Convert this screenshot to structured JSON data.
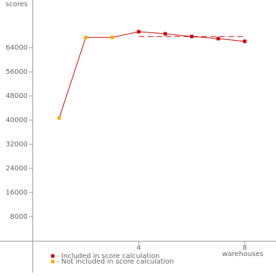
{
  "chart_data": {
    "type": "line",
    "y_label": "scores",
    "x_label": "warehouses",
    "x": [
      1,
      2,
      3,
      4,
      5,
      6,
      7,
      8
    ],
    "values": [
      40700,
      67400,
      67400,
      69300,
      68600,
      67700,
      67000,
      66100
    ],
    "line_color": "#cc0000",
    "marker_colors": [
      "#ffaa00",
      "#ffaa00",
      "#ffaa00",
      "#cc0000",
      "#cc0000",
      "#cc0000",
      "#cc0000",
      "#cc0000"
    ],
    "score": 67700,
    "score_range": [
      4,
      8
    ],
    "legend": [
      {
        "label": "- Included in score calculation",
        "color": "#cc0000"
      },
      {
        "label": "- Not included in score calculation",
        "color": "#ffaa00"
      }
    ],
    "xlim": [
      0,
      9.18
    ],
    "xticks": [
      4,
      8
    ],
    "ylim": [
      -10500,
      79800
    ],
    "yticks": [
      8000,
      16000,
      24000,
      32000,
      40000,
      48000,
      56000,
      64000
    ]
  }
}
